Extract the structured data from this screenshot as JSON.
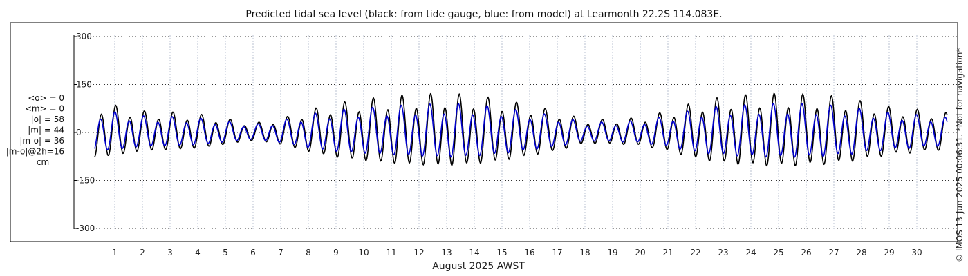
{
  "chart_data": {
    "type": "line",
    "title": "Predicted tidal sea level (black: from tide gauge, blue: from model) at Learmonth 22.2S 114.083E.",
    "xlabel": "August 2025 AWST",
    "ylabel": "",
    "x_ticks": [
      "1",
      "2",
      "3",
      "4",
      "5",
      "6",
      "7",
      "8",
      "9",
      "10",
      "11",
      "12",
      "13",
      "14",
      "15",
      "16",
      "17",
      "18",
      "19",
      "20",
      "21",
      "22",
      "23",
      "24",
      "25",
      "26",
      "27",
      "28",
      "29",
      "30"
    ],
    "xlim_days": [
      0,
      31
    ],
    "y_ticks": [
      "300",
      "150",
      "0",
      "-150",
      "-300"
    ],
    "y_tick_values": [
      300,
      150,
      0,
      -150,
      -300
    ],
    "ylim": [
      -315,
      345
    ],
    "grid": true,
    "legend": "none",
    "stats": [
      "<o> = 0",
      "<m> = 0",
      "|o| = 58",
      "|m| = 44",
      "|m-o| = 36",
      "|m-o|@2h=16",
      "cm"
    ],
    "credit": "© IMOS 13-Jun-2025 00:06:31. *Not for navigation*",
    "series": [
      {
        "color": "#000000",
        "envelope_days": [
          0,
          1,
          2,
          3,
          4,
          5,
          6,
          7,
          8,
          9,
          10,
          11,
          12,
          13,
          14,
          15,
          16,
          17,
          18,
          19,
          20,
          21,
          22,
          23,
          24,
          25,
          26,
          27,
          28,
          29,
          30,
          31
        ],
        "envelope_amplitude": [
          92,
          82,
          65,
          62,
          56,
          42,
          28,
          42,
          68,
          88,
          100,
          110,
          115,
          118,
          112,
          100,
          82,
          65,
          38,
          40,
          45,
          65,
          92,
          108,
          115,
          118,
          115,
          110,
          95,
          78,
          70,
          60
        ]
      },
      {
        "color": "#0000cc",
        "envelope_days": [
          0,
          1,
          2,
          3,
          4,
          5,
          6,
          7,
          8,
          9,
          10,
          11,
          12,
          13,
          14,
          15,
          16,
          17,
          18,
          19,
          20,
          21,
          22,
          23,
          24,
          25,
          26,
          27,
          28,
          29,
          30,
          31
        ],
        "envelope_amplitude": [
          66,
          62,
          50,
          48,
          44,
          34,
          24,
          36,
          54,
          68,
          74,
          80,
          84,
          88,
          84,
          76,
          62,
          50,
          30,
          32,
          36,
          50,
          70,
          80,
          84,
          88,
          86,
          82,
          72,
          60,
          54,
          46
        ]
      }
    ]
  }
}
